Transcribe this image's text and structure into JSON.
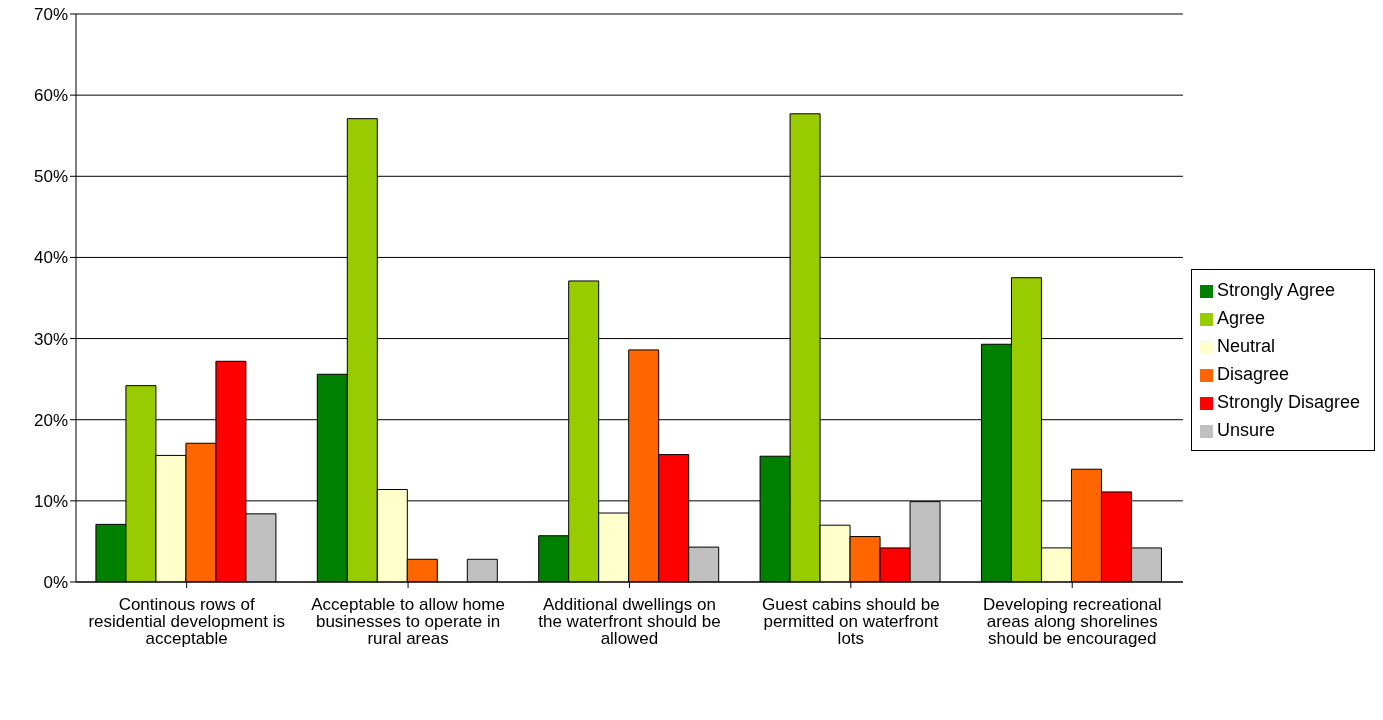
{
  "chart_data": {
    "type": "bar",
    "categories": [
      "Continous rows of residential development is acceptable",
      "Acceptable to allow home businesses to operate in rural areas",
      "Additional dwellings on the waterfront should be allowed",
      "Guest cabins should be permitted on waterfront lots",
      "Developing recreational areas along shorelines should be encouraged"
    ],
    "series": [
      {
        "name": "Strongly Agree",
        "color": "#008000",
        "values": [
          7.1,
          25.6,
          5.7,
          15.5,
          29.3
        ]
      },
      {
        "name": "Agree",
        "color": "#99cc00",
        "values": [
          24.2,
          57.1,
          37.1,
          57.7,
          37.5
        ]
      },
      {
        "name": "Neutral",
        "color": "#ffffcc",
        "values": [
          15.6,
          11.4,
          8.5,
          7.0,
          4.2
        ]
      },
      {
        "name": "Disagree",
        "color": "#ff6600",
        "values": [
          17.1,
          2.8,
          28.6,
          5.6,
          13.9
        ]
      },
      {
        "name": "Strongly Disagree",
        "color": "#ff0000",
        "values": [
          27.2,
          0,
          15.7,
          4.2,
          11.1
        ]
      },
      {
        "name": "Unsure",
        "color": "#c0c0c0",
        "values": [
          8.4,
          2.8,
          4.3,
          9.9,
          4.2
        ]
      }
    ],
    "ylim": [
      0,
      70
    ],
    "yticks": [
      {
        "value": 0,
        "label": "0%"
      },
      {
        "value": 10,
        "label": "10%"
      },
      {
        "value": 20,
        "label": "20%"
      },
      {
        "value": 30,
        "label": "30%"
      },
      {
        "value": 40,
        "label": "40%"
      },
      {
        "value": 50,
        "label": "50%"
      },
      {
        "value": 60,
        "label": "60%"
      },
      {
        "value": 70,
        "label": "70%"
      }
    ],
    "grid": "y",
    "legend": "right"
  }
}
